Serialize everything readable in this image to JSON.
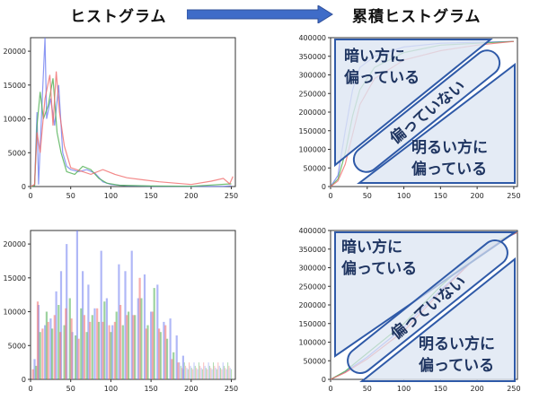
{
  "headings": {
    "left": "ヒストグラム",
    "right": "累積ヒストグラム"
  },
  "annotations": {
    "dark": [
      "暗い方に",
      "偏っている"
    ],
    "flat": "偏っていない",
    "bright": [
      "明るい方に",
      "偏っている"
    ]
  },
  "colors": {
    "blue": "#6f7ef0",
    "green": "#4caf50",
    "red": "#f06b6b",
    "note_fill": "#dde6f2",
    "note_border": "#2f5aa8",
    "note_text": "#1f3561",
    "arrow": "#3f6cc8"
  },
  "chart_data": [
    {
      "type": "line",
      "title": "",
      "xlim": [
        0,
        255
      ],
      "ylim": [
        0,
        22000
      ],
      "xticks": [
        0,
        50,
        100,
        150,
        200,
        250
      ],
      "yticks": [
        0,
        5000,
        10000,
        15000,
        20000
      ],
      "series": [
        {
          "color": "blue",
          "points": [
            [
              0,
              0
            ],
            [
              5,
              200
            ],
            [
              8,
              11000
            ],
            [
              10,
              300
            ],
            [
              15,
              14000
            ],
            [
              18,
              22000
            ],
            [
              20,
              10000
            ],
            [
              25,
              13000
            ],
            [
              30,
              9000
            ],
            [
              35,
              15000
            ],
            [
              40,
              5000
            ],
            [
              45,
              3000
            ],
            [
              50,
              2500
            ],
            [
              60,
              2200
            ],
            [
              70,
              2500
            ],
            [
              80,
              2000
            ],
            [
              90,
              700
            ],
            [
              100,
              300
            ],
            [
              120,
              100
            ],
            [
              150,
              50
            ],
            [
              200,
              30
            ],
            [
              240,
              20
            ],
            [
              250,
              100
            ]
          ]
        },
        {
          "color": "green",
          "points": [
            [
              0,
              0
            ],
            [
              5,
              100
            ],
            [
              8,
              9000
            ],
            [
              12,
              14000
            ],
            [
              16,
              10000
            ],
            [
              22,
              12000
            ],
            [
              28,
              16000
            ],
            [
              33,
              8000
            ],
            [
              38,
              5000
            ],
            [
              45,
              2200
            ],
            [
              55,
              1800
            ],
            [
              65,
              3000
            ],
            [
              75,
              2500
            ],
            [
              85,
              1200
            ],
            [
              95,
              500
            ],
            [
              110,
              200
            ],
            [
              150,
              80
            ],
            [
              200,
              40
            ],
            [
              250,
              400
            ]
          ]
        },
        {
          "color": "red",
          "points": [
            [
              0,
              0
            ],
            [
              5,
              300
            ],
            [
              8,
              8000
            ],
            [
              12,
              5000
            ],
            [
              18,
              13000
            ],
            [
              24,
              16500
            ],
            [
              28,
              9000
            ],
            [
              32,
              17000
            ],
            [
              36,
              11000
            ],
            [
              42,
              6000
            ],
            [
              50,
              2800
            ],
            [
              60,
              2400
            ],
            [
              75,
              1800
            ],
            [
              90,
              2500
            ],
            [
              105,
              1800
            ],
            [
              120,
              1300
            ],
            [
              140,
              1000
            ],
            [
              160,
              700
            ],
            [
              180,
              500
            ],
            [
              200,
              300
            ],
            [
              225,
              800
            ],
            [
              240,
              1200
            ],
            [
              248,
              400
            ],
            [
              252,
              1500
            ]
          ]
        }
      ]
    },
    {
      "type": "line",
      "title": "",
      "xlim": [
        0,
        255
      ],
      "ylim": [
        0,
        400000
      ],
      "xticks": [
        0,
        50,
        100,
        150,
        200,
        250
      ],
      "yticks": [
        0,
        50000,
        100000,
        150000,
        200000,
        250000,
        300000,
        350000,
        400000
      ],
      "series": [
        {
          "color": "blue",
          "points": [
            [
              0,
              0
            ],
            [
              10,
              30000
            ],
            [
              20,
              150000
            ],
            [
              30,
              260000
            ],
            [
              40,
              320000
            ],
            [
              60,
              350000
            ],
            [
              100,
              375000
            ],
            [
              150,
              385000
            ],
            [
              250,
              390000
            ]
          ]
        },
        {
          "color": "green",
          "points": [
            [
              0,
              0
            ],
            [
              10,
              20000
            ],
            [
              20,
              90000
            ],
            [
              30,
              190000
            ],
            [
              40,
              260000
            ],
            [
              60,
              320000
            ],
            [
              100,
              360000
            ],
            [
              150,
              380000
            ],
            [
              250,
              390000
            ]
          ]
        },
        {
          "color": "red",
          "points": [
            [
              0,
              0
            ],
            [
              10,
              15000
            ],
            [
              20,
              60000
            ],
            [
              30,
              140000
            ],
            [
              40,
              220000
            ],
            [
              60,
              290000
            ],
            [
              100,
              340000
            ],
            [
              150,
              365000
            ],
            [
              200,
              380000
            ],
            [
              250,
              390000
            ]
          ]
        }
      ]
    },
    {
      "type": "bar",
      "title": "",
      "xlim": [
        0,
        255
      ],
      "ylim": [
        0,
        22000
      ],
      "xticks": [
        0,
        50,
        100,
        150,
        200,
        250
      ],
      "yticks": [
        0,
        5000,
        10000,
        15000,
        20000
      ],
      "series": [
        {
          "color": "blue",
          "bars": [
            [
              5,
              3000
            ],
            [
              10,
              11000
            ],
            [
              18,
              8000
            ],
            [
              25,
              9000
            ],
            [
              32,
              13000
            ],
            [
              38,
              16000
            ],
            [
              45,
              20000
            ],
            [
              52,
              7000
            ],
            [
              58,
              22000
            ],
            [
              65,
              16000
            ],
            [
              72,
              14000
            ],
            [
              80,
              10500
            ],
            [
              88,
              19000
            ],
            [
              95,
              12000
            ],
            [
              102,
              8000
            ],
            [
              110,
              17000
            ],
            [
              118,
              16000
            ],
            [
              126,
              19000
            ],
            [
              134,
              12000
            ],
            [
              142,
              15500
            ],
            [
              150,
              10000
            ],
            [
              158,
              14000
            ],
            [
              166,
              8500
            ],
            [
              174,
              9000
            ],
            [
              182,
              6500
            ],
            [
              190,
              3500
            ]
          ]
        },
        {
          "color": "green",
          "bars": [
            [
              7,
              2000
            ],
            [
              12,
              7000
            ],
            [
              20,
              10000
            ],
            [
              27,
              7500
            ],
            [
              35,
              11000
            ],
            [
              42,
              8000
            ],
            [
              49,
              12000
            ],
            [
              56,
              6500
            ],
            [
              63,
              10500
            ],
            [
              70,
              7000
            ],
            [
              77,
              9500
            ],
            [
              85,
              8500
            ],
            [
              92,
              11500
            ],
            [
              100,
              7000
            ],
            [
              107,
              10000
            ],
            [
              115,
              8000
            ],
            [
              122,
              10000
            ],
            [
              130,
              9500
            ],
            [
              138,
              12000
            ],
            [
              146,
              8000
            ],
            [
              154,
              13500
            ],
            [
              162,
              7000
            ],
            [
              170,
              6000
            ],
            [
              178,
              4000
            ]
          ]
        },
        {
          "color": "red",
          "bars": [
            [
              3,
              1500
            ],
            [
              9,
              11500
            ],
            [
              15,
              7500
            ],
            [
              22,
              8500
            ],
            [
              30,
              9500
            ],
            [
              37,
              7000
            ],
            [
              44,
              10500
            ],
            [
              51,
              9000
            ],
            [
              60,
              6000
            ],
            [
              67,
              9500
            ],
            [
              74,
              8500
            ],
            [
              83,
              10500
            ],
            [
              90,
              8500
            ],
            [
              98,
              8000
            ],
            [
              105,
              8500
            ],
            [
              112,
              11000
            ],
            [
              120,
              9500
            ],
            [
              128,
              9500
            ],
            [
              136,
              15000
            ],
            [
              144,
              7500
            ],
            [
              152,
              10000
            ],
            [
              160,
              7500
            ],
            [
              168,
              8000
            ],
            [
              176,
              3000
            ],
            [
              184,
              2500
            ]
          ]
        }
      ],
      "noise_band": {
        "from": 185,
        "to": 250,
        "levels": [
          2500,
          2000,
          1700,
          1500
        ]
      }
    },
    {
      "type": "line",
      "title": "",
      "xlim": [
        0,
        255
      ],
      "ylim": [
        0,
        400000
      ],
      "xticks": [
        0,
        50,
        100,
        150,
        200,
        250
      ],
      "yticks": [
        0,
        50000,
        100000,
        150000,
        200000,
        250000,
        300000,
        350000,
        400000
      ],
      "series": [
        {
          "color": "blue",
          "points": [
            [
              0,
              0
            ],
            [
              20,
              20000
            ],
            [
              50,
              60000
            ],
            [
              100,
              140000
            ],
            [
              150,
              240000
            ],
            [
              200,
              330000
            ],
            [
              230,
              370000
            ],
            [
              255,
              395000
            ]
          ]
        },
        {
          "color": "green",
          "points": [
            [
              0,
              0
            ],
            [
              20,
              22000
            ],
            [
              50,
              70000
            ],
            [
              100,
              150000
            ],
            [
              150,
              250000
            ],
            [
              200,
              340000
            ],
            [
              230,
              375000
            ],
            [
              255,
              395000
            ]
          ]
        },
        {
          "color": "red",
          "points": [
            [
              0,
              0
            ],
            [
              20,
              18000
            ],
            [
              50,
              55000
            ],
            [
              100,
              130000
            ],
            [
              150,
              235000
            ],
            [
              200,
              330000
            ],
            [
              230,
              372000
            ],
            [
              255,
              395000
            ]
          ]
        }
      ]
    }
  ]
}
